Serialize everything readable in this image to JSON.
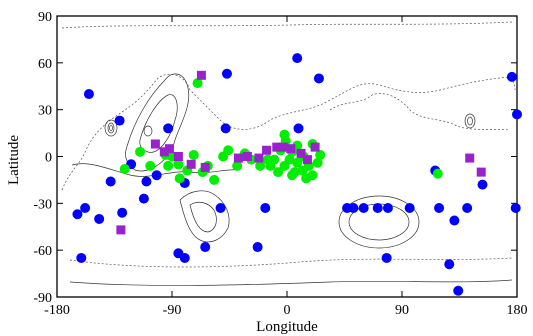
{
  "chart_data": {
    "type": "scatter",
    "title": "",
    "xlabel": "Longitude",
    "ylabel": "Latitude",
    "xlim": [
      -180,
      180
    ],
    "ylim": [
      -90,
      90
    ],
    "xticks": [
      -180,
      -90,
      0,
      90,
      180
    ],
    "yticks": [
      -90,
      -60,
      -30,
      0,
      30,
      60,
      90
    ],
    "xtick_labels": [
      "-180",
      "-90",
      "0",
      "90",
      "180"
    ],
    "ytick_labels": [
      "-90",
      "-60",
      "-30",
      "0",
      "30",
      "60",
      "90"
    ],
    "grid": false,
    "legend": "none",
    "background": "contour map",
    "series": [
      {
        "marker": "circle",
        "color": "#0000ff",
        "points": [
          [
            8,
            63
          ],
          [
            -47,
            53
          ],
          [
            25,
            50
          ],
          [
            -155,
            40
          ],
          [
            176,
            51
          ],
          [
            180,
            27
          ],
          [
            -131,
            23
          ],
          [
            -93,
            18
          ],
          [
            -48,
            18
          ],
          [
            9,
            18
          ],
          [
            -122,
            -5
          ],
          [
            -110,
            -16
          ],
          [
            -138,
            -16
          ],
          [
            -112,
            -27
          ],
          [
            -52,
            -33
          ],
          [
            -158,
            -33
          ],
          [
            -147,
            -40
          ],
          [
            -129,
            -36
          ],
          [
            -164,
            -37
          ],
          [
            -17,
            -33
          ],
          [
            47,
            -33
          ],
          [
            52,
            -33
          ],
          [
            60,
            -33
          ],
          [
            71,
            -33
          ],
          [
            79,
            -33
          ],
          [
            96,
            -33
          ],
          [
            119,
            -33
          ],
          [
            131,
            -41
          ],
          [
            141,
            -33
          ],
          [
            179,
            -33
          ],
          [
            -161,
            -65
          ],
          [
            -85,
            -62
          ],
          [
            -80,
            -65
          ],
          [
            -64,
            -58
          ],
          [
            -23,
            -58
          ],
          [
            78,
            -65
          ],
          [
            127,
            -69
          ],
          [
            134,
            -86
          ],
          [
            116,
            -9
          ],
          [
            153,
            -18
          ],
          [
            -80,
            -17
          ],
          [
            -102,
            -12
          ]
        ]
      },
      {
        "marker": "circle",
        "color": "#00ee00",
        "points": [
          [
            -70,
            47
          ],
          [
            -127,
            -8
          ],
          [
            -107,
            -6
          ],
          [
            -93,
            -6
          ],
          [
            -90,
            0
          ],
          [
            -84,
            -14
          ],
          [
            -73,
            1
          ],
          [
            -62,
            -6
          ],
          [
            -57,
            -15
          ],
          [
            -46,
            4
          ],
          [
            -39,
            -6
          ],
          [
            -33,
            2
          ],
          [
            -15,
            -2
          ],
          [
            -10,
            -2
          ],
          [
            -7,
            -10
          ],
          [
            -2,
            -6
          ],
          [
            -5,
            4
          ],
          [
            -13,
            -6
          ],
          [
            -2,
            14
          ],
          [
            2,
            -2
          ],
          [
            4,
            3
          ],
          [
            8,
            -4
          ],
          [
            13,
            0
          ],
          [
            17,
            -6
          ],
          [
            20,
            -12
          ],
          [
            24,
            -4
          ],
          [
            26,
            1
          ],
          [
            6,
            -10
          ],
          [
            12,
            -9
          ],
          [
            -1,
            10
          ],
          [
            4,
            -12
          ],
          [
            15,
            -14
          ],
          [
            -85,
            -5
          ],
          [
            -78,
            -9
          ],
          [
            -66,
            -10
          ],
          [
            -50,
            0
          ],
          [
            -28,
            -2
          ],
          [
            -95,
            1
          ],
          [
            118,
            -11
          ],
          [
            8,
            7
          ],
          [
            20,
            8
          ],
          [
            -21,
            -6
          ],
          [
            -115,
            3
          ]
        ]
      },
      {
        "marker": "square",
        "color": "#9922cc",
        "points": [
          [
            -96,
            3
          ],
          [
            -92,
            5
          ],
          [
            -85,
            0
          ],
          [
            -75,
            -5
          ],
          [
            -64,
            -7
          ],
          [
            -38,
            -1
          ],
          [
            -31,
            0
          ],
          [
            -22,
            -1
          ],
          [
            -16,
            4
          ],
          [
            -8,
            6
          ],
          [
            -3,
            6
          ],
          [
            3,
            5
          ],
          [
            11,
            2
          ],
          [
            16,
            -2
          ],
          [
            22,
            6
          ],
          [
            -103,
            8
          ],
          [
            -67,
            52
          ],
          [
            -130,
            -47
          ],
          [
            143,
            -1
          ],
          [
            152,
            -10
          ]
        ]
      }
    ]
  }
}
